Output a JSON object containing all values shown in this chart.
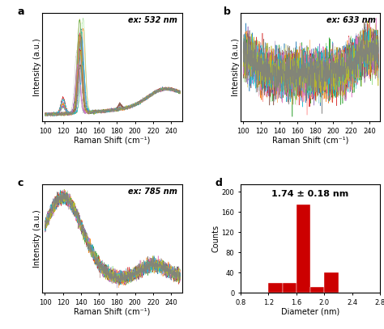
{
  "fig_width": 4.74,
  "fig_height": 4.07,
  "dpi": 100,
  "x_ticks": [
    100,
    120,
    140,
    160,
    180,
    200,
    220,
    240
  ],
  "xlabel": "Raman Shift (cm⁻¹)",
  "ylabel": "Intensity (a.u.)",
  "panel_a_label": "ex: 532 nm",
  "panel_b_label": "ex: 633 nm",
  "panel_c_label": "ex: 785 nm",
  "panel_d_title": "1.74 ± 0.18 nm",
  "hist_bin_edges": [
    0.8,
    1.0,
    1.2,
    1.4,
    1.6,
    1.8,
    2.0,
    2.2,
    2.4,
    2.6,
    2.8
  ],
  "hist_counts": [
    0,
    0,
    20,
    20,
    175,
    12,
    40,
    0,
    0,
    0
  ],
  "hist_color": "#cc0000",
  "hist_xlabel": "Diameter (nm)",
  "hist_ylabel": "Counts",
  "hist_yticks": [
    0,
    40,
    80,
    120,
    160,
    200
  ],
  "hist_xticks": [
    0.8,
    1.2,
    1.6,
    2.0,
    2.4,
    2.8
  ],
  "n_lines": 30,
  "colors": [
    "#1f77b4",
    "#ff7f0e",
    "#2ca02c",
    "#d62728",
    "#9467bd",
    "#8c564b",
    "#e377c2",
    "#7f7f7f",
    "#bcbd22",
    "#17becf",
    "#aec7e8",
    "#ffbb78",
    "#98df8a",
    "#ff9896",
    "#c5b0d5",
    "#c49c94",
    "#f7b6d2",
    "#c7c7c7",
    "#dbdb8d",
    "#9edae5",
    "#1f77b4",
    "#ff7f0e",
    "#2ca02c",
    "#d62728",
    "#9467bd",
    "#8c564b",
    "#e377c2",
    "#17becf",
    "#bcbd22",
    "#7f7f7f"
  ],
  "label_fontsize": 7,
  "tick_fontsize": 6,
  "annotation_fontsize": 7,
  "panel_letter_fontsize": 9
}
